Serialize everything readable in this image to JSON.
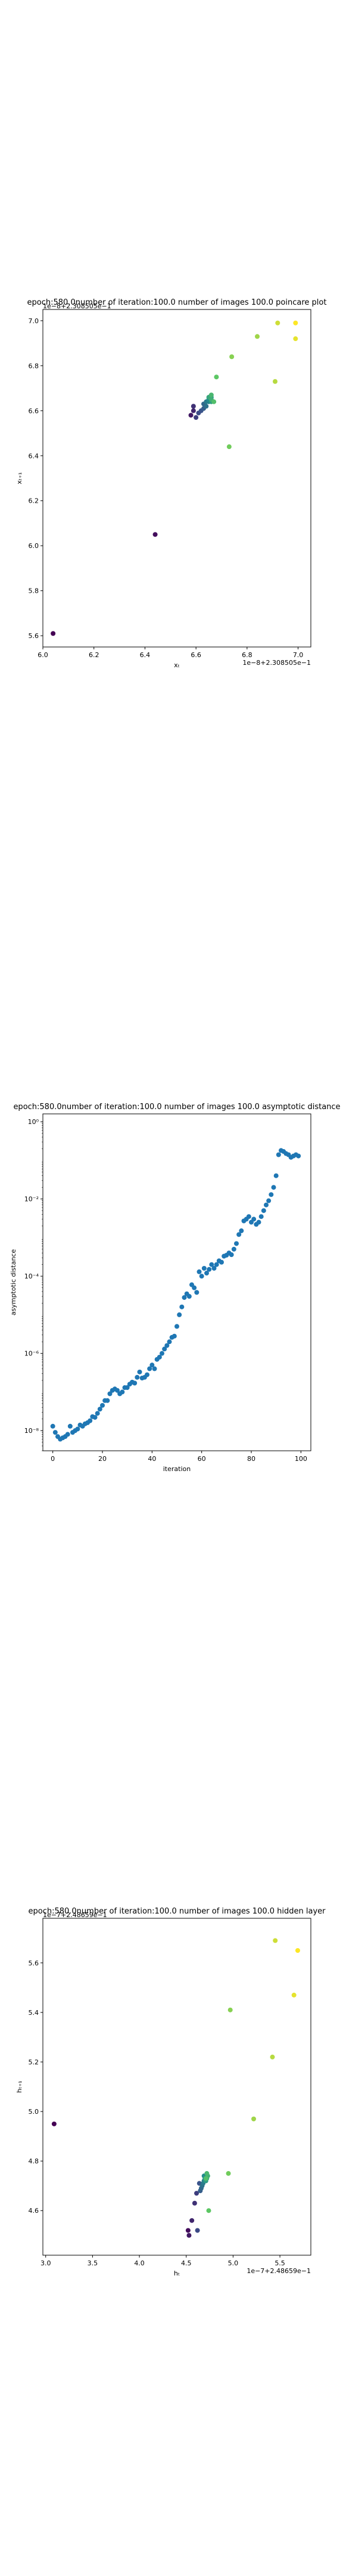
{
  "chart_data": [
    {
      "type": "scatter",
      "title": "epoch:580.0number of iteration:100.0 number of images 100.0 poincare plot",
      "xlabel": "xₜ",
      "ylabel": "xₜ₊₁",
      "x_offset_label": "1e−8+2.308505e−1",
      "y_offset_label": "1e−8+2.308505e−1",
      "xlim": [
        6.0,
        7.05
      ],
      "ylim": [
        5.55,
        7.05
      ],
      "xticks": [
        6.0,
        6.2,
        6.4,
        6.6,
        6.8,
        7.0
      ],
      "yticks": [
        5.6,
        5.8,
        6.0,
        6.2,
        6.4,
        6.6,
        6.8,
        7.0
      ],
      "tick_decimals": 1,
      "colormap": "viridis",
      "x": [
        6.04,
        6.44,
        6.58,
        6.59,
        6.59,
        6.6,
        6.61,
        6.62,
        6.63,
        6.63,
        6.64,
        6.64,
        6.65,
        6.65,
        6.66,
        6.66,
        6.65,
        6.66,
        6.66,
        6.67,
        6.68,
        6.73,
        6.74,
        6.84,
        6.91,
        6.92,
        6.99,
        6.99
      ],
      "y": [
        5.61,
        6.05,
        6.58,
        6.6,
        6.62,
        6.57,
        6.59,
        6.6,
        6.61,
        6.63,
        6.62,
        6.64,
        6.64,
        6.65,
        6.66,
        6.64,
        6.66,
        6.65,
        6.67,
        6.64,
        6.75,
        6.44,
        6.84,
        6.93,
        6.73,
        6.99,
        6.92,
        6.99
      ]
    },
    {
      "type": "scatter",
      "title": "epoch:580.0number of iteration:100.0  number of images 100.0 asymptotic distance",
      "xlabel": "iteration",
      "ylabel": "asymptotic distance",
      "y_scale": "log",
      "xlim": [
        -4,
        104
      ],
      "ylim": [
        3e-09,
        1.6
      ],
      "xticks": [
        0,
        20,
        40,
        60,
        80,
        100
      ],
      "yticks": [
        1e-08,
        1e-06,
        0.0001,
        0.01,
        1
      ],
      "ytick_labels": [
        "10⁻⁸",
        "10⁻⁶",
        "10⁻⁴",
        "10⁻²",
        "10⁰"
      ],
      "color": "#1f77b4",
      "x": [
        0,
        1,
        2,
        3,
        4,
        5,
        6,
        7,
        8,
        9,
        10,
        11,
        12,
        13,
        14,
        15,
        16,
        17,
        18,
        19,
        20,
        21,
        22,
        23,
        24,
        25,
        26,
        27,
        28,
        29,
        30,
        31,
        32,
        33,
        34,
        35,
        36,
        37,
        38,
        39,
        40,
        41,
        42,
        43,
        44,
        45,
        46,
        47,
        48,
        49,
        50,
        51,
        52,
        53,
        54,
        55,
        56,
        57,
        58,
        59,
        60,
        61,
        62,
        63,
        64,
        65,
        66,
        67,
        68,
        69,
        70,
        71,
        72,
        73,
        74,
        75,
        76,
        77,
        78,
        79,
        80,
        81,
        82,
        83,
        84,
        85,
        86,
        87,
        88,
        89,
        90,
        91,
        92,
        93,
        94,
        95,
        96,
        97,
        98,
        99
      ],
      "y": [
        1.3e-08,
        9e-09,
        7e-09,
        6e-09,
        6.5e-09,
        7e-09,
        8e-09,
        1.3e-08,
        9e-09,
        1e-08,
        1.1e-08,
        1.4e-08,
        1.3e-08,
        1.5e-08,
        1.6e-08,
        1.8e-08,
        2.3e-08,
        2.2e-08,
        2.8e-08,
        3.6e-08,
        4.5e-08,
        6e-08,
        6e-08,
        9e-08,
        1.1e-07,
        1.2e-07,
        1.1e-07,
        9e-08,
        1e-07,
        1.3e-07,
        1.3e-07,
        1.6e-07,
        1.8e-07,
        1.7e-07,
        2.4e-07,
        3.3e-07,
        2.3e-07,
        2.4e-07,
        2.8e-07,
        4e-07,
        5e-07,
        4e-07,
        7e-07,
        8e-07,
        1e-06,
        1.3e-06,
        1.6e-06,
        2e-06,
        2.6e-06,
        2.8e-06,
        5e-06,
        1e-05,
        1.6e-05,
        2.8e-05,
        3.5e-05,
        3e-05,
        6e-05,
        5e-05,
        3.8e-05,
        0.00013,
        0.0001,
        0.00016,
        0.00012,
        0.00015,
        0.0002,
        0.00016,
        0.0002,
        0.00025,
        0.00023,
        0.00033,
        0.00035,
        0.0004,
        0.00036,
        0.0005,
        0.0007,
        0.0012,
        0.0015,
        0.0027,
        0.003,
        0.0035,
        0.0025,
        0.003,
        0.0022,
        0.0025,
        0.0035,
        0.005,
        0.007,
        0.009,
        0.013,
        0.02,
        0.04,
        0.14,
        0.18,
        0.17,
        0.15,
        0.14,
        0.12,
        0.13,
        0.14,
        0.13
      ]
    },
    {
      "type": "scatter",
      "title": "epoch:580.0number of iteration:100.0  number of images 100.0 hidden layer",
      "xlabel": "hₜ",
      "ylabel": "hₜ₊₁",
      "x_offset_label": "1e−7+2.48659e−1",
      "y_offset_label": "1e−7+2.48659e−1",
      "xlim": [
        2.97,
        5.83
      ],
      "ylim": [
        4.42,
        5.78
      ],
      "xticks": [
        3.0,
        3.5,
        4.0,
        4.5,
        5.0,
        5.5
      ],
      "yticks": [
        4.6,
        4.8,
        5.0,
        5.2,
        5.4,
        5.6
      ],
      "tick_decimals": 1,
      "colormap": "viridis",
      "x": [
        3.09,
        4.52,
        4.53,
        4.56,
        4.59,
        4.61,
        4.62,
        4.64,
        4.65,
        4.66,
        4.67,
        4.68,
        4.69,
        4.69,
        4.7,
        4.71,
        4.72,
        4.73,
        4.72,
        4.71,
        4.74,
        4.95,
        4.97,
        5.22,
        5.42,
        5.45,
        5.65,
        5.69
      ],
      "y": [
        4.95,
        4.52,
        4.5,
        4.56,
        4.63,
        4.67,
        4.52,
        4.71,
        4.68,
        4.69,
        4.7,
        4.71,
        4.72,
        4.74,
        4.73,
        4.72,
        4.73,
        4.74,
        4.75,
        4.73,
        4.6,
        4.75,
        5.41,
        4.97,
        5.22,
        5.69,
        5.47,
        5.65
      ]
    }
  ]
}
